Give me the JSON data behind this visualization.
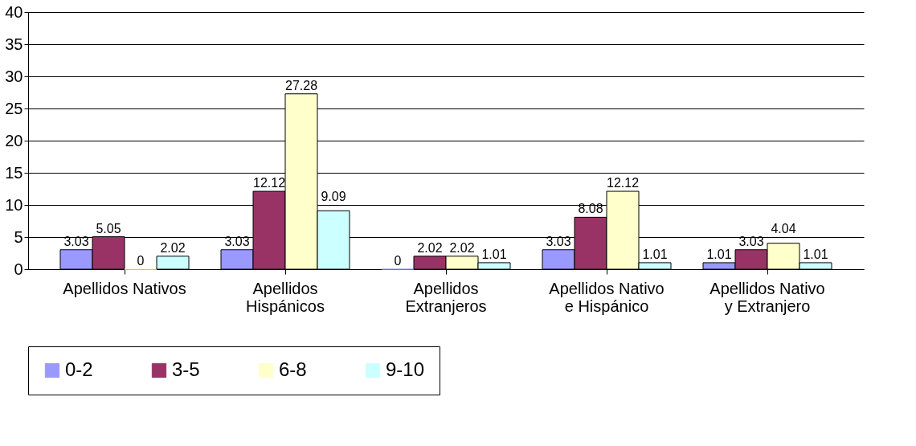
{
  "chart_data": {
    "type": "bar",
    "categories": [
      "Apellidos Nativos",
      "Apellidos Hispánicos",
      "Apellidos Extranjeros",
      "Apellidos Nativo e Hispánico",
      "Apellidos Nativo y Extranjero"
    ],
    "series": [
      {
        "name": "0-2",
        "color": "#9999ff",
        "values": [
          3.03,
          3.03,
          0,
          3.03,
          1.01
        ]
      },
      {
        "name": "3-5",
        "color": "#993366",
        "values": [
          5.05,
          12.12,
          2.02,
          8.08,
          3.03
        ]
      },
      {
        "name": "6-8",
        "color": "#ffffcc",
        "values": [
          0,
          27.28,
          2.02,
          12.12,
          4.04
        ]
      },
      {
        "name": "9-10",
        "color": "#ccffff",
        "values": [
          2.02,
          9.09,
          1.01,
          1.01,
          1.01
        ]
      }
    ],
    "ylim": [
      0,
      40
    ],
    "yticks": [
      0,
      5,
      10,
      15,
      20,
      25,
      30,
      35,
      40
    ],
    "grid": "y",
    "legend": "bottom",
    "data_labels": true
  }
}
